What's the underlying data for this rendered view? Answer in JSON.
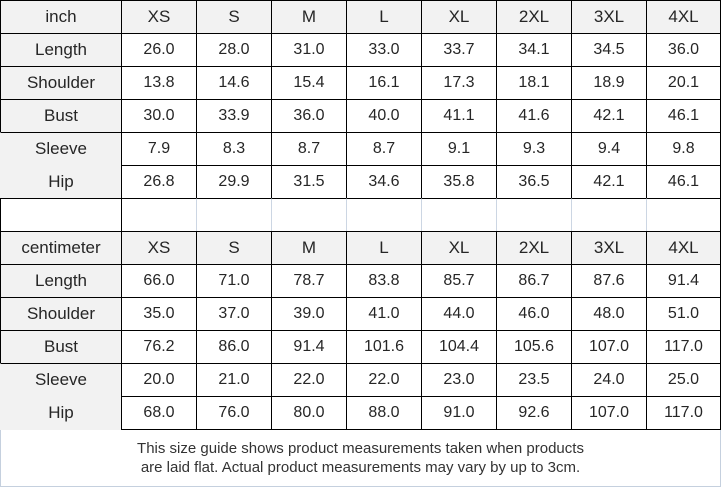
{
  "colors": {
    "border_dark": "#000000",
    "border_light": "#ccd6e3",
    "header_bg": "#f2f2f2",
    "text": "#262626"
  },
  "chart_data": [
    {
      "type": "table",
      "unit_label": "inch",
      "size_columns": [
        "XS",
        "S",
        "M",
        "L",
        "XL",
        "2XL",
        "3XL",
        "4XL"
      ],
      "rows": [
        {
          "label": "Length",
          "values": [
            "26.0",
            "28.0",
            "31.0",
            "33.0",
            "33.7",
            "34.1",
            "34.5",
            "36.0"
          ]
        },
        {
          "label": "Shoulder",
          "values": [
            "13.8",
            "14.6",
            "15.4",
            "16.1",
            "17.3",
            "18.1",
            "18.9",
            "20.1"
          ]
        },
        {
          "label": "Bust",
          "values": [
            "30.0",
            "33.9",
            "36.0",
            "40.0",
            "41.1",
            "41.6",
            "42.1",
            "46.1"
          ]
        },
        {
          "label": "Sleeve",
          "values": [
            "7.9",
            "8.3",
            "8.7",
            "8.7",
            "9.1",
            "9.3",
            "9.4",
            "9.8"
          ]
        },
        {
          "label": "Hip",
          "values": [
            "26.8",
            "29.9",
            "31.5",
            "34.6",
            "35.8",
            "36.5",
            "42.1",
            "46.1"
          ]
        }
      ]
    },
    {
      "type": "table",
      "unit_label": "centimeter",
      "size_columns": [
        "XS",
        "S",
        "M",
        "L",
        "XL",
        "2XL",
        "3XL",
        "4XL"
      ],
      "rows": [
        {
          "label": "Length",
          "values": [
            "66.0",
            "71.0",
            "78.7",
            "83.8",
            "85.7",
            "86.7",
            "87.6",
            "91.4"
          ]
        },
        {
          "label": "Shoulder",
          "values": [
            "35.0",
            "37.0",
            "39.0",
            "41.0",
            "44.0",
            "46.0",
            "48.0",
            "51.0"
          ]
        },
        {
          "label": "Bust",
          "values": [
            "76.2",
            "86.0",
            "91.4",
            "101.6",
            "104.4",
            "105.6",
            "107.0",
            "117.0"
          ]
        },
        {
          "label": "Sleeve",
          "values": [
            "20.0",
            "21.0",
            "22.0",
            "22.0",
            "23.0",
            "23.5",
            "24.0",
            "25.0"
          ]
        },
        {
          "label": "Hip",
          "values": [
            "68.0",
            "76.0",
            "80.0",
            "88.0",
            "91.0",
            "92.6",
            "107.0",
            "117.0"
          ]
        }
      ]
    }
  ],
  "footer": {
    "line1": "This size guide shows product measurements taken when products",
    "line2": "are laid flat. Actual product measurements may vary by up to 3cm."
  }
}
